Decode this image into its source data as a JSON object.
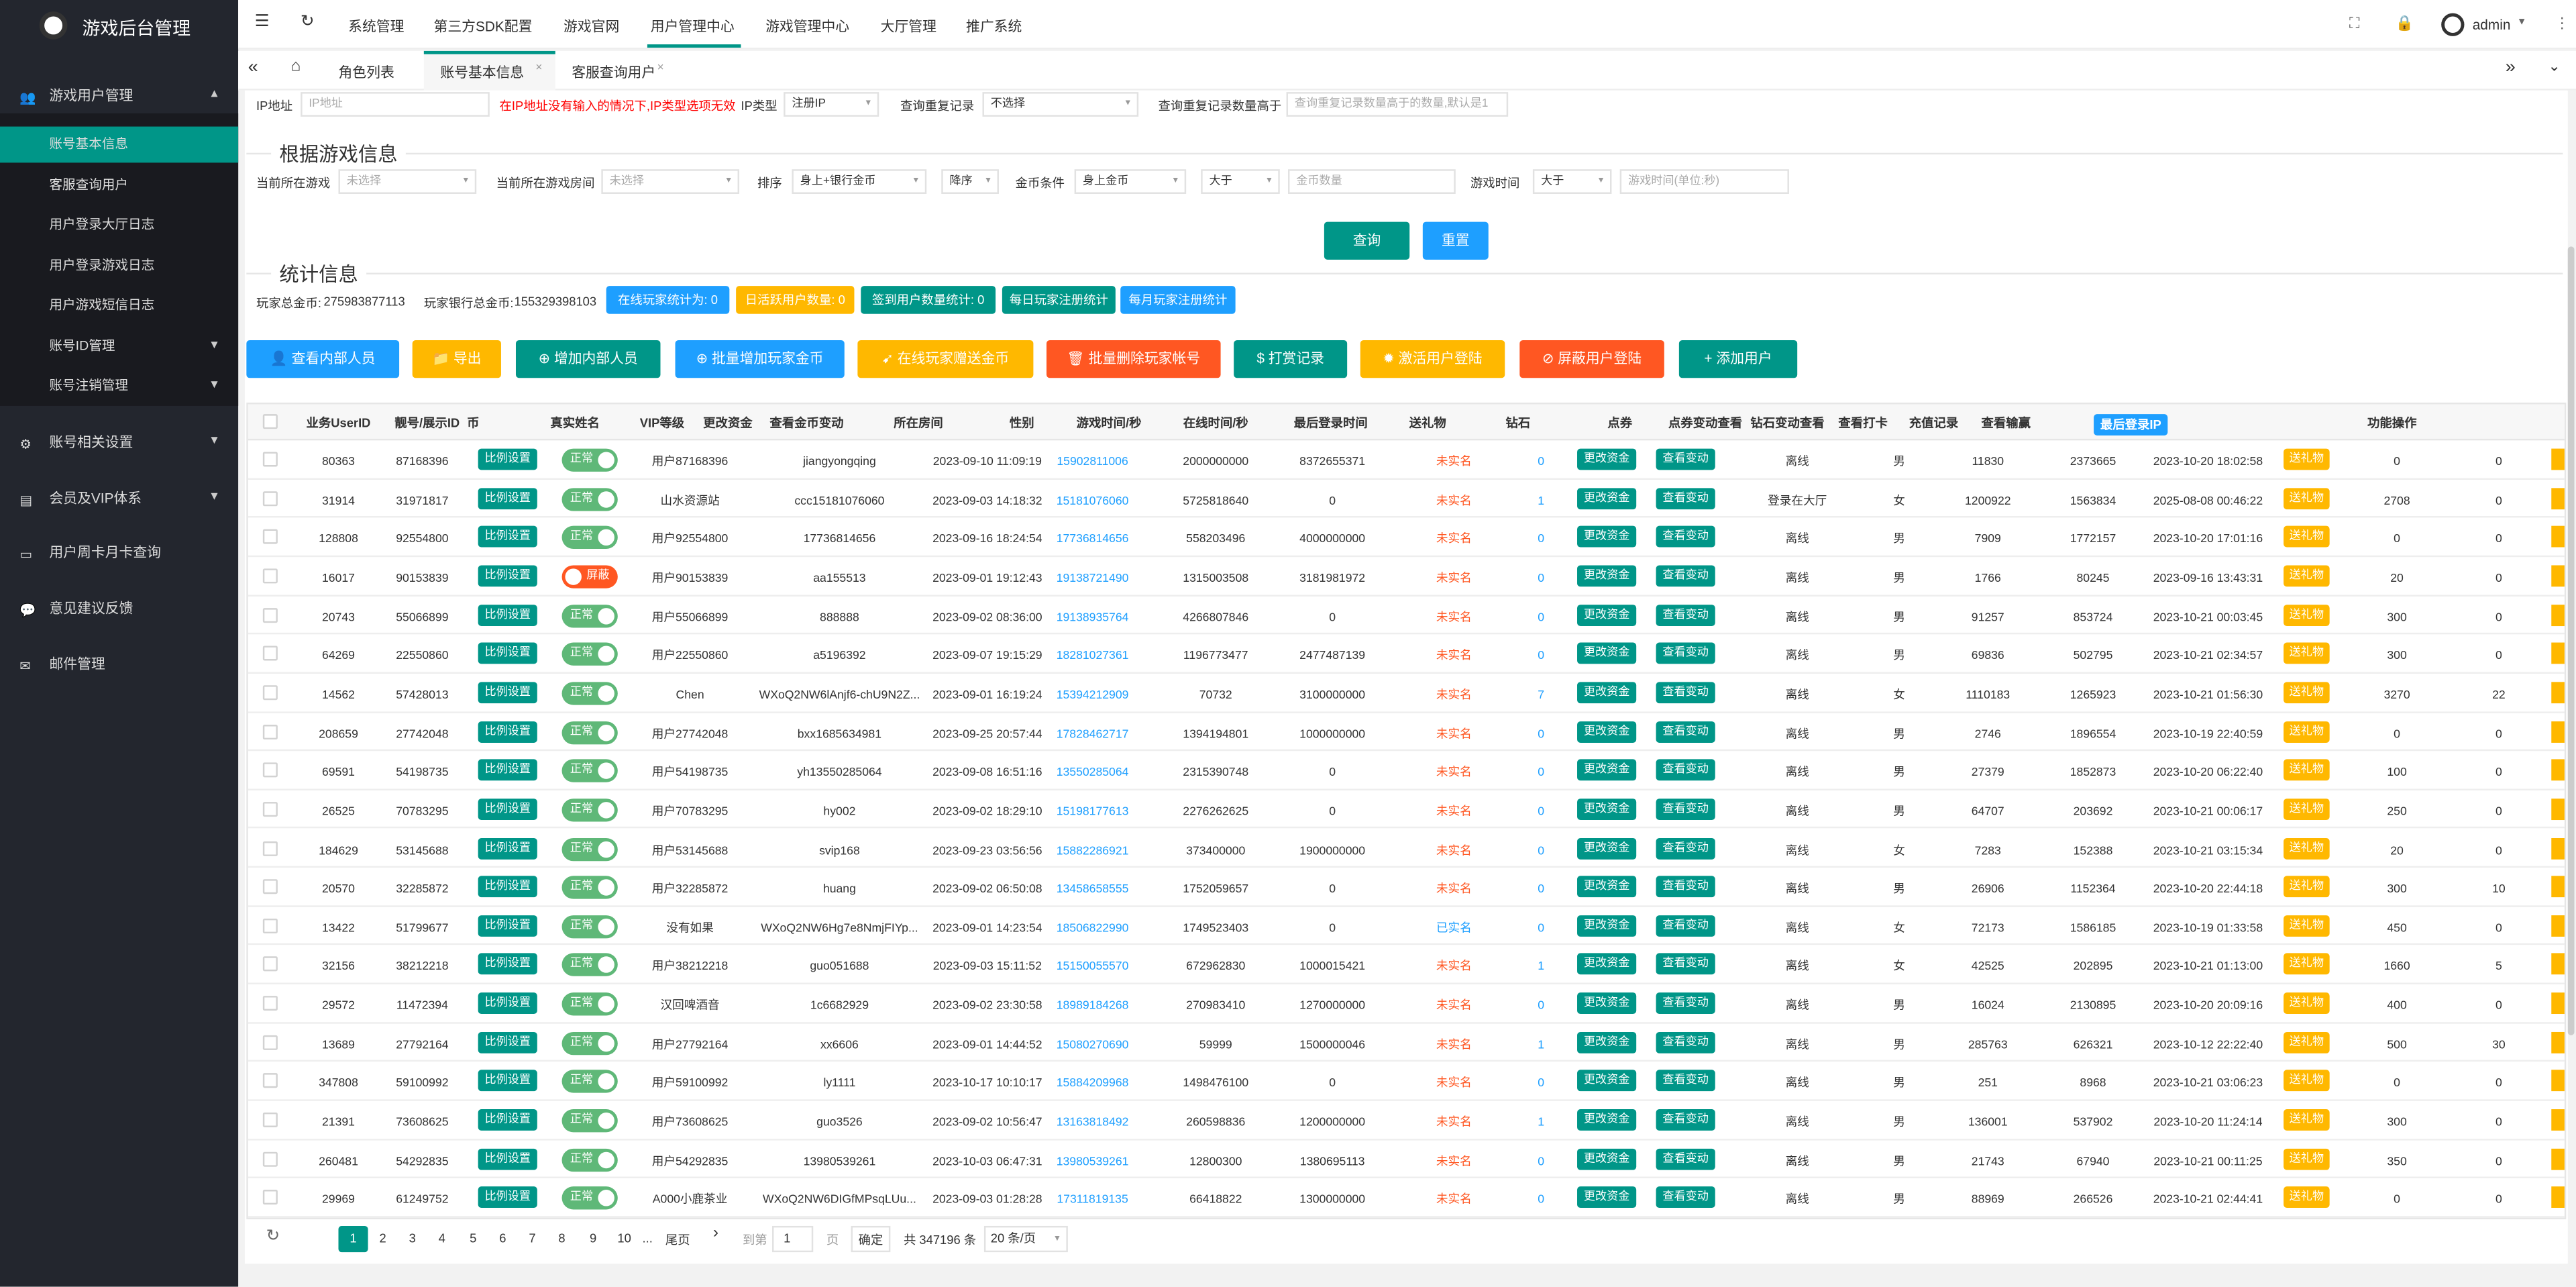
{
  "sidebar": {
    "title": "游戏后台管理",
    "menu": [
      "游戏用户管理",
      "账号相关设置",
      "会员及VIP体系",
      "用户周卡月卡查询",
      "意见建议反馈",
      "邮件管理"
    ],
    "submenu": [
      "账号基本信息",
      "客服查询用户",
      "用户登录大厅日志",
      "用户登录游戏日志",
      "用户游戏短信日志",
      "账号ID管理",
      "账号注销管理"
    ]
  },
  "topnav": {
    "items": [
      "系统管理",
      "第三方SDK配置",
      "游戏官网",
      "用户管理中心",
      "游戏管理中心",
      "大厅管理",
      "推广系统"
    ],
    "user": "admin"
  },
  "tabs": [
    "角色列表",
    "账号基本信息",
    "客服查询用户"
  ],
  "filters": {
    "ip_label": "IP地址",
    "ip_placeholder": "IP地址",
    "ip_note": "在IP地址没有输入的情况下,IP类型选项无效",
    "ip_type_label": "IP类型",
    "ip_type": "注册IP",
    "repeat_label": "查询重复记录",
    "repeat": "不选择",
    "repeat_count_label": "查询重复记录数量高于",
    "repeat_count_placeholder": "查询重复记录数量高于的数量,默认是1",
    "game_section": "根据游戏信息",
    "game_label": "当前所在游戏",
    "game": "未选择",
    "room_label": "当前所在游戏房间",
    "room": "未选择",
    "sort_label": "排序",
    "sort": "身上+银行金币",
    "order": "降序",
    "gold_cond_label": "金币条件",
    "gold_cond": "身上金币",
    "gold_cmp": "大于",
    "gold_placeholder": "金币数量",
    "time_label": "游戏时间",
    "time_cmp": "大于",
    "time_placeholder": "游戏时间(单位:秒)",
    "search": "查询",
    "reset": "重置"
  },
  "stats": {
    "section": "统计信息",
    "total_gold_label": "玩家总金币:",
    "total_gold": 275983877113,
    "bank_gold_label": "玩家银行总金币:",
    "bank_gold": 155329398103,
    "online_label": "在线玩家统计为:",
    "online": 0,
    "daily_active_label": "日活跃用户数量:",
    "daily_active": 0,
    "signin_label": "签到用户数量统计:",
    "signin": 0,
    "daily_reg": "每日玩家注册统计",
    "monthly_reg": "每月玩家注册统计"
  },
  "actions": [
    "查看内部人员",
    "导出",
    "增加内部人员",
    "批量增加玩家金币",
    "在线玩家赠送金币",
    "批量删除玩家帐号",
    "打赏记录",
    "激活用户登陆",
    "屏蔽用户登陆",
    "添加用户"
  ],
  "table": {
    "headers": [
      "业务UserID",
      "靓号/展示ID",
      "币",
      "真实姓名",
      "VIP等级",
      "更改资金",
      "查看金币变动",
      "所在房间",
      "性别",
      "游戏时间/秒",
      "在线时间/秒",
      "最后登录时间",
      "送礼物",
      "钻石",
      "点券",
      "点券变动查看",
      "钻石变动查看",
      "查看打卡",
      "充值记录",
      "查看输赢",
      "最后登录IP",
      "功能操作"
    ],
    "buttons": {
      "ratio": "比例设置",
      "change": "更改资金",
      "view": "查看变动",
      "gift": "送礼物"
    },
    "rows": [
      [
        80363,
        87168396,
        "正常",
        "用户87168396",
        "jiangyongqing",
        "2023-09-10 11:09:19",
        "15902811006",
        2000000000,
        8372655371,
        "未实名",
        0,
        "离线",
        "男",
        11830,
        2373665,
        "2023-10-20 18:02:58",
        0,
        0
      ],
      [
        31914,
        31971817,
        "正常",
        "山水资源站",
        "ccc15181076060",
        "2023-09-03 14:18:32",
        "15181076060",
        5725818640,
        0,
        "未实名",
        1,
        "登录在大厅",
        "女",
        1200922,
        1563834,
        "2025-08-08 00:46:22",
        2708,
        0
      ],
      [
        128808,
        92554800,
        "正常",
        "用户92554800",
        "17736814656",
        "2023-09-16 18:24:54",
        "17736814656",
        558203496,
        4000000000,
        "未实名",
        0,
        "离线",
        "男",
        7909,
        1772157,
        "2023-10-20 17:01:16",
        0,
        0
      ],
      [
        16017,
        90153839,
        "屏蔽",
        "用户90153839",
        "aa155513",
        "2023-09-01 19:12:43",
        "19138721490",
        1315003508,
        3181981972,
        "未实名",
        0,
        "离线",
        "男",
        1766,
        80245,
        "2023-09-16 13:43:31",
        20,
        0
      ],
      [
        20743,
        55066899,
        "正常",
        "用户55066899",
        "888888",
        "2023-09-02 08:36:00",
        "19138935764",
        4266807846,
        0,
        "未实名",
        0,
        "离线",
        "男",
        91257,
        853724,
        "2023-10-21 00:03:45",
        300,
        0
      ],
      [
        64269,
        22550860,
        "正常",
        "用户22550860",
        "a5196392",
        "2023-09-07 19:15:29",
        "18281027361",
        1196773477,
        2477487139,
        "未实名",
        0,
        "离线",
        "男",
        69836,
        502795,
        "2023-10-21 02:34:57",
        300,
        0
      ],
      [
        14562,
        57428013,
        "正常",
        "Chen",
        "WXoQ2NW6lAnjf6-chU9N2Z...",
        "2023-09-01 16:19:24",
        "15394212909",
        70732,
        3100000000,
        "未实名",
        7,
        "离线",
        "女",
        1110183,
        1265923,
        "2023-10-21 01:56:30",
        3270,
        22
      ],
      [
        208659,
        27742048,
        "正常",
        "用户27742048",
        "bxx1685634981",
        "2023-09-25 20:57:44",
        "17828462717",
        1394194801,
        1000000000,
        "未实名",
        0,
        "离线",
        "男",
        2746,
        1896554,
        "2023-10-19 22:40:59",
        0,
        0
      ],
      [
        69591,
        54198735,
        "正常",
        "用户54198735",
        "yh13550285064",
        "2023-09-08 16:51:16",
        "13550285064",
        2315390748,
        0,
        "未实名",
        0,
        "离线",
        "男",
        27379,
        1852873,
        "2023-10-20 06:22:40",
        100,
        0
      ],
      [
        26525,
        70783295,
        "正常",
        "用户70783295",
        "hy002",
        "2023-09-02 18:29:10",
        "15198177613",
        2276262625,
        0,
        "未实名",
        0,
        "离线",
        "男",
        64707,
        203692,
        "2023-10-21 00:06:17",
        250,
        0
      ],
      [
        184629,
        53145688,
        "正常",
        "用户53145688",
        "svip168",
        "2023-09-23 03:56:56",
        "15882286921",
        373400000,
        1900000000,
        "未实名",
        0,
        "离线",
        "女",
        7283,
        152388,
        "2023-10-21 03:15:34",
        20,
        0
      ],
      [
        20570,
        32285872,
        "正常",
        "用户32285872",
        "huang",
        "2023-09-02 06:50:08",
        "13458658555",
        1752059657,
        0,
        "未实名",
        0,
        "离线",
        "男",
        26906,
        1152364,
        "2023-10-20 22:44:18",
        300,
        10
      ],
      [
        13422,
        51799677,
        "正常",
        "没有如果",
        "WXoQ2NW6Hg7e8NmjFIYp...",
        "2023-09-01 14:23:54",
        "18506822990",
        1749523403,
        0,
        "已实名",
        0,
        "离线",
        "女",
        72173,
        1586185,
        "2023-10-19 01:33:58",
        450,
        0
      ],
      [
        32156,
        38212218,
        "正常",
        "用户38212218",
        "guo051688",
        "2023-09-03 15:11:52",
        "15150055570",
        672962830,
        1000015421,
        "未实名",
        1,
        "离线",
        "女",
        42525,
        202895,
        "2023-10-21 01:13:00",
        1660,
        5
      ],
      [
        29572,
        11472394,
        "正常",
        "汉回啤酒音",
        "1c6682929",
        "2023-09-02 23:30:58",
        "18989184268",
        270983410,
        1270000000,
        "未实名",
        0,
        "离线",
        "男",
        16024,
        2130895,
        "2023-10-20 20:09:16",
        400,
        0
      ],
      [
        13689,
        27792164,
        "正常",
        "用户27792164",
        "xx6606",
        "2023-09-01 14:44:52",
        "15080270690",
        59999,
        1500000046,
        "未实名",
        1,
        "离线",
        "男",
        285763,
        626321,
        "2023-10-12 22:22:40",
        500,
        30
      ],
      [
        347808,
        59100992,
        "正常",
        "用户59100992",
        "ly1111",
        "2023-10-17 10:10:17",
        "15884209968",
        1498476100,
        0,
        "未实名",
        0,
        "离线",
        "男",
        251,
        8968,
        "2023-10-21 03:06:23",
        0,
        0
      ],
      [
        21391,
        73608625,
        "正常",
        "用户73608625",
        "guo3526",
        "2023-09-02 10:56:47",
        "13163818492",
        260598836,
        1200000000,
        "未实名",
        1,
        "离线",
        "男",
        136001,
        537902,
        "2023-10-20 11:24:14",
        300,
        0
      ],
      [
        260481,
        54292835,
        "正常",
        "用户54292835",
        "13980539261",
        "2023-10-03 06:47:31",
        "13980539261",
        12800300,
        1380695113,
        "未实名",
        0,
        "离线",
        "男",
        21743,
        67940,
        "2023-10-21 00:11:25",
        350,
        0
      ],
      [
        29969,
        61249752,
        "正常",
        "A000小鹿茶业",
        "WXoQ2NW6DIGfMPsqLUu...",
        "2023-09-03 01:28:28",
        "17311819135",
        66418822,
        1300000000,
        "未实名",
        0,
        "离线",
        "男",
        88969,
        266526,
        "2023-10-21 02:44:41",
        0,
        0
      ]
    ]
  },
  "pagination": {
    "pages": [
      1,
      2,
      3,
      4,
      5,
      6,
      7,
      8,
      9,
      10
    ],
    "ellipsis": "...",
    "last": "尾页",
    "goto": "到第",
    "current": 1,
    "page_unit": "页",
    "confirm": "确定",
    "total": "共 347196 条",
    "size": "20 条/页"
  }
}
